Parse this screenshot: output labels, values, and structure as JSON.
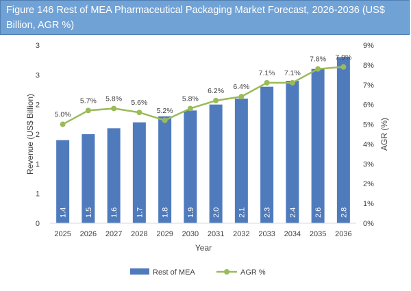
{
  "title": "Figure 146 Rest of MEA Pharmaceutical Packaging Market Forecast, 2026-2036 (US$ Billion, AGR %)",
  "chart_data": {
    "type": "bar+line",
    "categories": [
      "2025",
      "2026",
      "2027",
      "2028",
      "2029",
      "2030",
      "2031",
      "2032",
      "2033",
      "2034",
      "2035",
      "2036"
    ],
    "series": [
      {
        "name": "Rest of MEA",
        "type": "bar",
        "axis": "left",
        "color": "#4f7bbd",
        "values": [
          1.4,
          1.5,
          1.6,
          1.7,
          1.8,
          1.9,
          2.0,
          2.1,
          2.3,
          2.4,
          2.6,
          2.8
        ],
        "labels": [
          "1.4",
          "1.5",
          "1.6",
          "1.7",
          "1.8",
          "1.9",
          "2.0",
          "2.1",
          "2.3",
          "2.4",
          "2.6",
          "2.8"
        ]
      },
      {
        "name": "AGR %",
        "type": "line",
        "axis": "right",
        "color": "#9bbb59",
        "values": [
          5.0,
          5.7,
          5.8,
          5.6,
          5.2,
          5.8,
          6.2,
          6.4,
          7.1,
          7.1,
          7.8,
          7.9
        ],
        "labels": [
          "5.0%",
          "5.7%",
          "5.8%",
          "5.6%",
          "5.2%",
          "5.8%",
          "6.2%",
          "6.4%",
          "7.1%",
          "7.1%",
          "7.8%",
          "7.9%"
        ]
      }
    ],
    "xlabel": "Year",
    "ylabel": "Revenue (US$ Billion)",
    "y2label": "AGR (%)",
    "ylim": [
      0,
      3
    ],
    "y_ticks": [
      0,
      0.5,
      1,
      1.5,
      2,
      2.5,
      3
    ],
    "y_tick_labels": [
      "0",
      "1",
      "1",
      "2",
      "2",
      "3",
      "3"
    ],
    "y2lim": [
      0,
      9
    ],
    "y2_tick_labels": [
      "0%",
      "1%",
      "2%",
      "3%",
      "4%",
      "5%",
      "6%",
      "7%",
      "8%",
      "9%"
    ],
    "grid": false,
    "legend": "bottom"
  }
}
